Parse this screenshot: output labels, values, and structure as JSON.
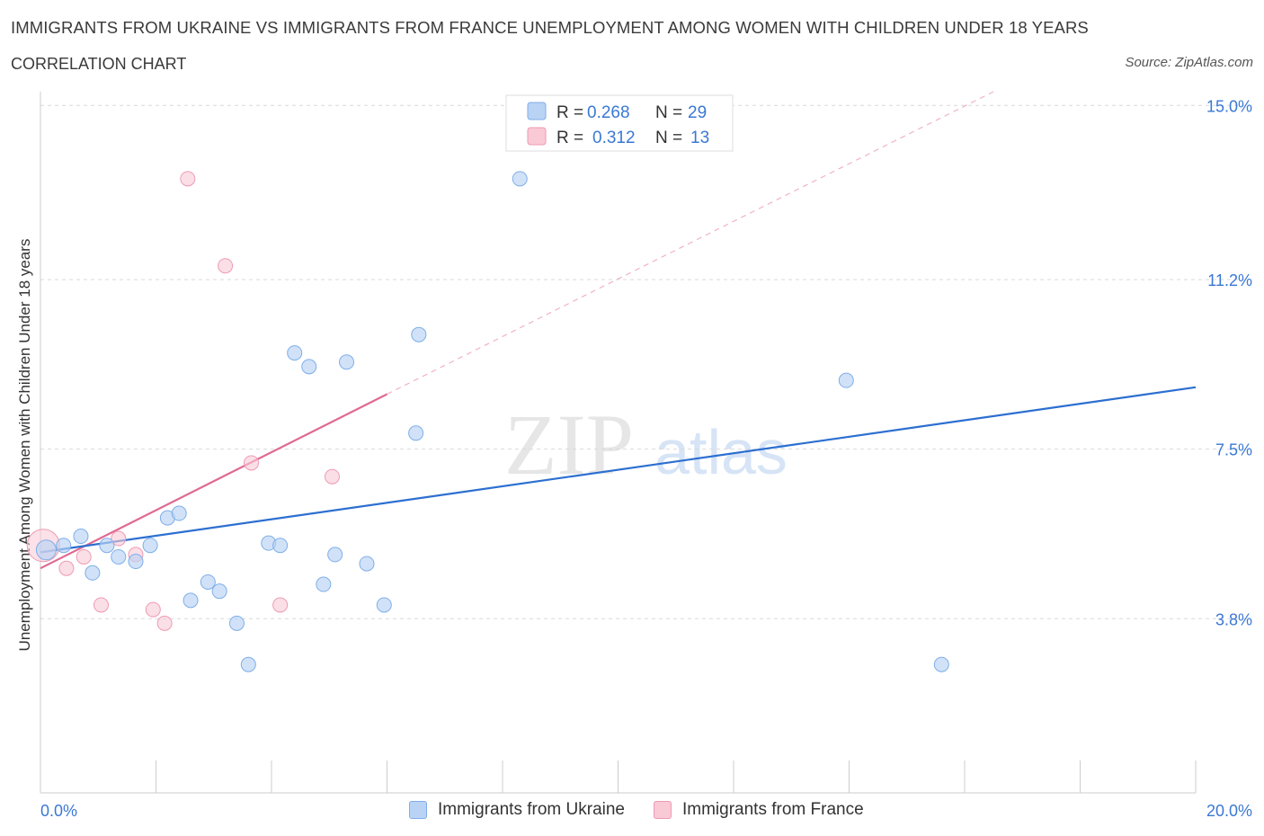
{
  "header": {
    "title": "IMMIGRANTS FROM UKRAINE VS IMMIGRANTS FROM FRANCE UNEMPLOYMENT AMONG WOMEN WITH CHILDREN UNDER 18 YEARS",
    "subtitle": "CORRELATION CHART",
    "source": "Source: ZipAtlas.com"
  },
  "watermark": {
    "zip": "ZIP",
    "atlas": "atlas"
  },
  "legend_top": {
    "ukraine": {
      "r_label": "R = ",
      "r_value": "0.268",
      "n_label": "N = ",
      "n_value": "29"
    },
    "france": {
      "r_label": "R = ",
      "r_value": "0.312",
      "n_label": "N = ",
      "n_value": "13"
    }
  },
  "colors": {
    "ukraine_fill": "#b9d3f5",
    "ukraine_stroke": "#7eaee8",
    "ukraine_line": "#2c6fd0",
    "france_fill": "#f9c9d6",
    "france_stroke": "#ee9ab3",
    "france_line": "#e06a93",
    "axis_value": "#3a78d4",
    "grid": "#d9d9d9"
  },
  "chart_data": {
    "type": "scatter",
    "title": "IMMIGRANTS FROM UKRAINE VS IMMIGRANTS FROM FRANCE UNEMPLOYMENT AMONG WOMEN WITH CHILDREN UNDER 18 YEARS",
    "xlabel": "",
    "ylabel": "Unemployment Among Women with Children Under 18 years",
    "xlim": [
      0,
      20
    ],
    "ylim": [
      0,
      15.3
    ],
    "x_tick_labels": [
      "0.0%",
      "20.0%"
    ],
    "y_ticks": [
      3.8,
      7.5,
      11.2,
      15.0
    ],
    "y_tick_labels": [
      "3.8%",
      "7.5%",
      "11.2%",
      "15.0%"
    ],
    "series": [
      {
        "name": "Immigrants from Ukraine",
        "points": [
          [
            0.1,
            5.3
          ],
          [
            0.4,
            5.4
          ],
          [
            0.7,
            5.6
          ],
          [
            0.9,
            4.8
          ],
          [
            1.15,
            5.4
          ],
          [
            1.35,
            5.15
          ],
          [
            1.65,
            5.05
          ],
          [
            1.9,
            5.4
          ],
          [
            2.2,
            6.0
          ],
          [
            2.4,
            6.1
          ],
          [
            2.6,
            4.2
          ],
          [
            2.9,
            4.6
          ],
          [
            3.1,
            4.4
          ],
          [
            3.4,
            3.7
          ],
          [
            3.6,
            2.8
          ],
          [
            3.95,
            5.45
          ],
          [
            4.15,
            5.4
          ],
          [
            4.4,
            9.6
          ],
          [
            4.65,
            9.3
          ],
          [
            4.9,
            4.55
          ],
          [
            5.1,
            5.2
          ],
          [
            5.3,
            9.4
          ],
          [
            5.65,
            5.0
          ],
          [
            5.95,
            4.1
          ],
          [
            6.5,
            7.85
          ],
          [
            6.55,
            10.0
          ],
          [
            8.3,
            13.4
          ],
          [
            13.95,
            9.0
          ],
          [
            15.6,
            2.8
          ]
        ],
        "trend": {
          "x": [
            0,
            20
          ],
          "y": [
            5.25,
            8.85
          ]
        }
      },
      {
        "name": "Immigrants from France",
        "points": [
          [
            0.05,
            5.4
          ],
          [
            0.45,
            4.9
          ],
          [
            0.75,
            5.15
          ],
          [
            1.05,
            4.1
          ],
          [
            1.35,
            5.55
          ],
          [
            1.65,
            5.2
          ],
          [
            1.95,
            4.0
          ],
          [
            2.15,
            3.7
          ],
          [
            2.55,
            13.4
          ],
          [
            3.2,
            11.5
          ],
          [
            3.65,
            7.2
          ],
          [
            4.15,
            4.1
          ],
          [
            5.05,
            6.9
          ]
        ],
        "trend": {
          "x": [
            0,
            6.0
          ],
          "y": [
            4.9,
            8.7
          ]
        },
        "trend_extended": {
          "x": [
            6.0,
            16.5
          ],
          "y": [
            8.7,
            15.3
          ]
        }
      }
    ]
  }
}
